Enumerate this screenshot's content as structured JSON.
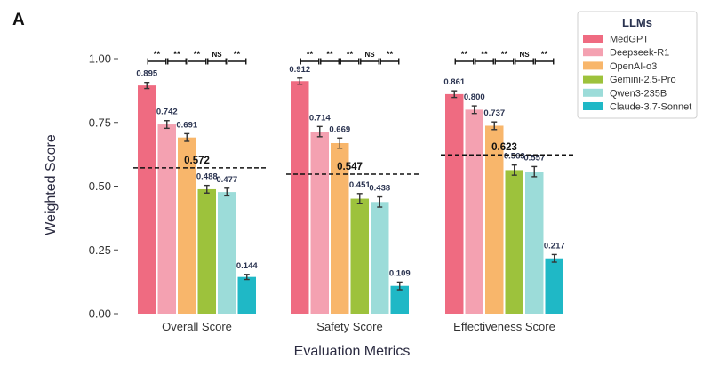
{
  "panel_letter": "A",
  "chart_data": {
    "type": "bar",
    "title": "",
    "xlabel": "Evaluation Metrics",
    "ylabel": "Weighted Score",
    "ylim": [
      0,
      1.0
    ],
    "yticks": [
      "0.00",
      "0.25",
      "0.50",
      "0.75",
      "1.00"
    ],
    "grid": false,
    "legend_placement": "top-right",
    "legend_title": "LLMs",
    "categories": [
      "Overall Score",
      "Safety Score",
      "Effectiveness Score"
    ],
    "series": [
      {
        "name": "MedGPT",
        "color": "#ef6b81",
        "values": [
          0.895,
          0.912,
          0.861
        ],
        "errors": [
          0.012,
          0.012,
          0.013
        ]
      },
      {
        "name": "Deepseek-R1",
        "color": "#f4a1b1",
        "values": [
          0.742,
          0.714,
          0.8
        ],
        "errors": [
          0.015,
          0.02,
          0.015
        ]
      },
      {
        "name": "OpenAI-o3",
        "color": "#f8b66b",
        "values": [
          0.691,
          0.669,
          0.737
        ],
        "errors": [
          0.015,
          0.02,
          0.015
        ]
      },
      {
        "name": "Gemini-2.5-Pro",
        "color": "#9dc23c",
        "values": [
          0.488,
          0.451,
          0.563
        ],
        "errors": [
          0.015,
          0.02,
          0.02
        ]
      },
      {
        "name": "Qwen3-235B",
        "color": "#9cdcd9",
        "values": [
          0.477,
          0.438,
          0.557
        ],
        "errors": [
          0.015,
          0.02,
          0.02
        ]
      },
      {
        "name": "Claude-3.7-Sonnet",
        "color": "#1fb8c6",
        "values": [
          0.144,
          0.109,
          0.217
        ],
        "errors": [
          0.01,
          0.015,
          0.015
        ]
      }
    ],
    "value_labels": [
      [
        "0.895",
        "0.742",
        "0.691",
        "0.488",
        "0.477",
        "0.144"
      ],
      [
        "0.912",
        "0.714",
        "0.669",
        "0.451",
        "0.438",
        "0.109"
      ],
      [
        "0.861",
        "0.800",
        "0.737",
        "0.563",
        "0.557",
        "0.217"
      ]
    ],
    "means": [
      0.572,
      0.547,
      0.623
    ],
    "mean_labels": [
      "0.572",
      "0.547",
      "0.623"
    ],
    "significance": [
      [
        "**",
        "**",
        "**",
        "NS",
        "**"
      ],
      [
        "**",
        "**",
        "**",
        "NS",
        "**"
      ],
      [
        "**",
        "**",
        "**",
        "NS",
        "**"
      ]
    ]
  }
}
